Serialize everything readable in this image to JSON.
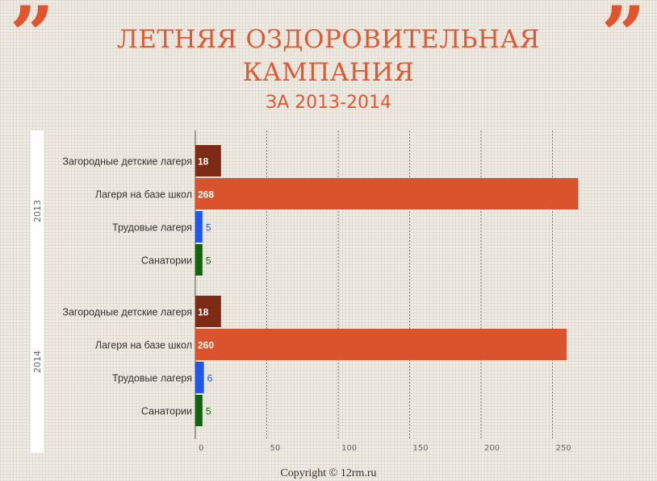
{
  "decor": {
    "quote_left": "”",
    "quote_right": "”",
    "accent_color": "#e0552d"
  },
  "title_line1": "ЛЕТНЯЯ ОЗДОРОВИТЕЛЬНАЯ",
  "title_line2": "КАМПАНИЯ",
  "subtitle": "ЗА 2013-2014",
  "copyright": "Copyright © 12rm.ru",
  "chart_data": {
    "type": "bar",
    "orientation": "horizontal",
    "title": "ЛЕТНЯЯ ОЗДОРОВИТЕЛЬНАЯ КАМПАНИЯ ЗА 2013-2014",
    "xlim": [
      0,
      260
    ],
    "ticks": [
      0,
      50,
      100,
      150,
      200,
      250
    ],
    "grid": true,
    "groups": [
      {
        "name": "2013",
        "items": [
          {
            "label": "Загородные детские лагеря",
            "value": 18,
            "color": "#7e2b15"
          },
          {
            "label": "Лагеря на базе школ",
            "value": 268,
            "color": "#d9542c"
          },
          {
            "label": "Трудовые лагеря",
            "value": 5,
            "color": "#2157e8"
          },
          {
            "label": "Санатории",
            "value": 5,
            "color": "#13620f"
          }
        ]
      },
      {
        "name": "2014",
        "items": [
          {
            "label": "Загородные детские лагеря",
            "value": 18,
            "color": "#7e2b15"
          },
          {
            "label": "Лагеря на базе школ",
            "value": 260,
            "color": "#d9542c"
          },
          {
            "label": "Трудовые лагеря",
            "value": 6,
            "color": "#2157e8"
          },
          {
            "label": "Санатории",
            "value": 5,
            "color": "#13620f"
          }
        ]
      }
    ]
  }
}
